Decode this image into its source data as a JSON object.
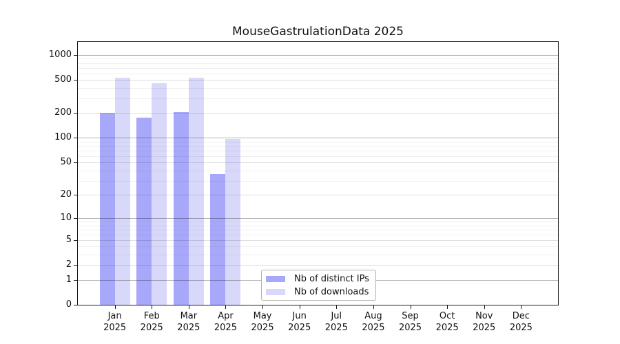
{
  "chart_data": {
    "type": "bar",
    "title": "MouseGastrulationData 2025",
    "x_axis": {
      "months": [
        "Jan",
        "Feb",
        "Mar",
        "Apr",
        "May",
        "Jun",
        "Jul",
        "Aug",
        "Sep",
        "Oct",
        "Nov",
        "Dec"
      ],
      "year": "2025"
    },
    "y_axis": {
      "ticks": [
        0,
        1,
        2,
        5,
        10,
        20,
        50,
        100,
        200,
        500,
        1000
      ],
      "scale": "log10(value+1)",
      "top_value": 1440
    },
    "series": [
      {
        "name": "Nb of distinct IPs",
        "color": "#a8a8fa",
        "values": [
          200,
          176,
          205,
          36,
          0,
          0,
          0,
          0,
          0,
          0,
          0,
          0
        ]
      },
      {
        "name": "Nb of downloads",
        "color": "#d8d8fa",
        "values": [
          530,
          457,
          531,
          97,
          0,
          0,
          0,
          0,
          0,
          0,
          0,
          0
        ]
      }
    ],
    "legend": {
      "position": "bottom-center",
      "items": [
        "Nb of distinct IPs",
        "Nb of downloads"
      ]
    },
    "grid": "horizontal",
    "colors": {
      "spine": "#1a1a1a",
      "grid_major": "rgba(0,0,0,0.30)",
      "grid_mid": "rgba(0,0,0,0.13)",
      "grid_minor": "rgba(0,0,0,0.06)",
      "background": "#ffffff"
    }
  }
}
